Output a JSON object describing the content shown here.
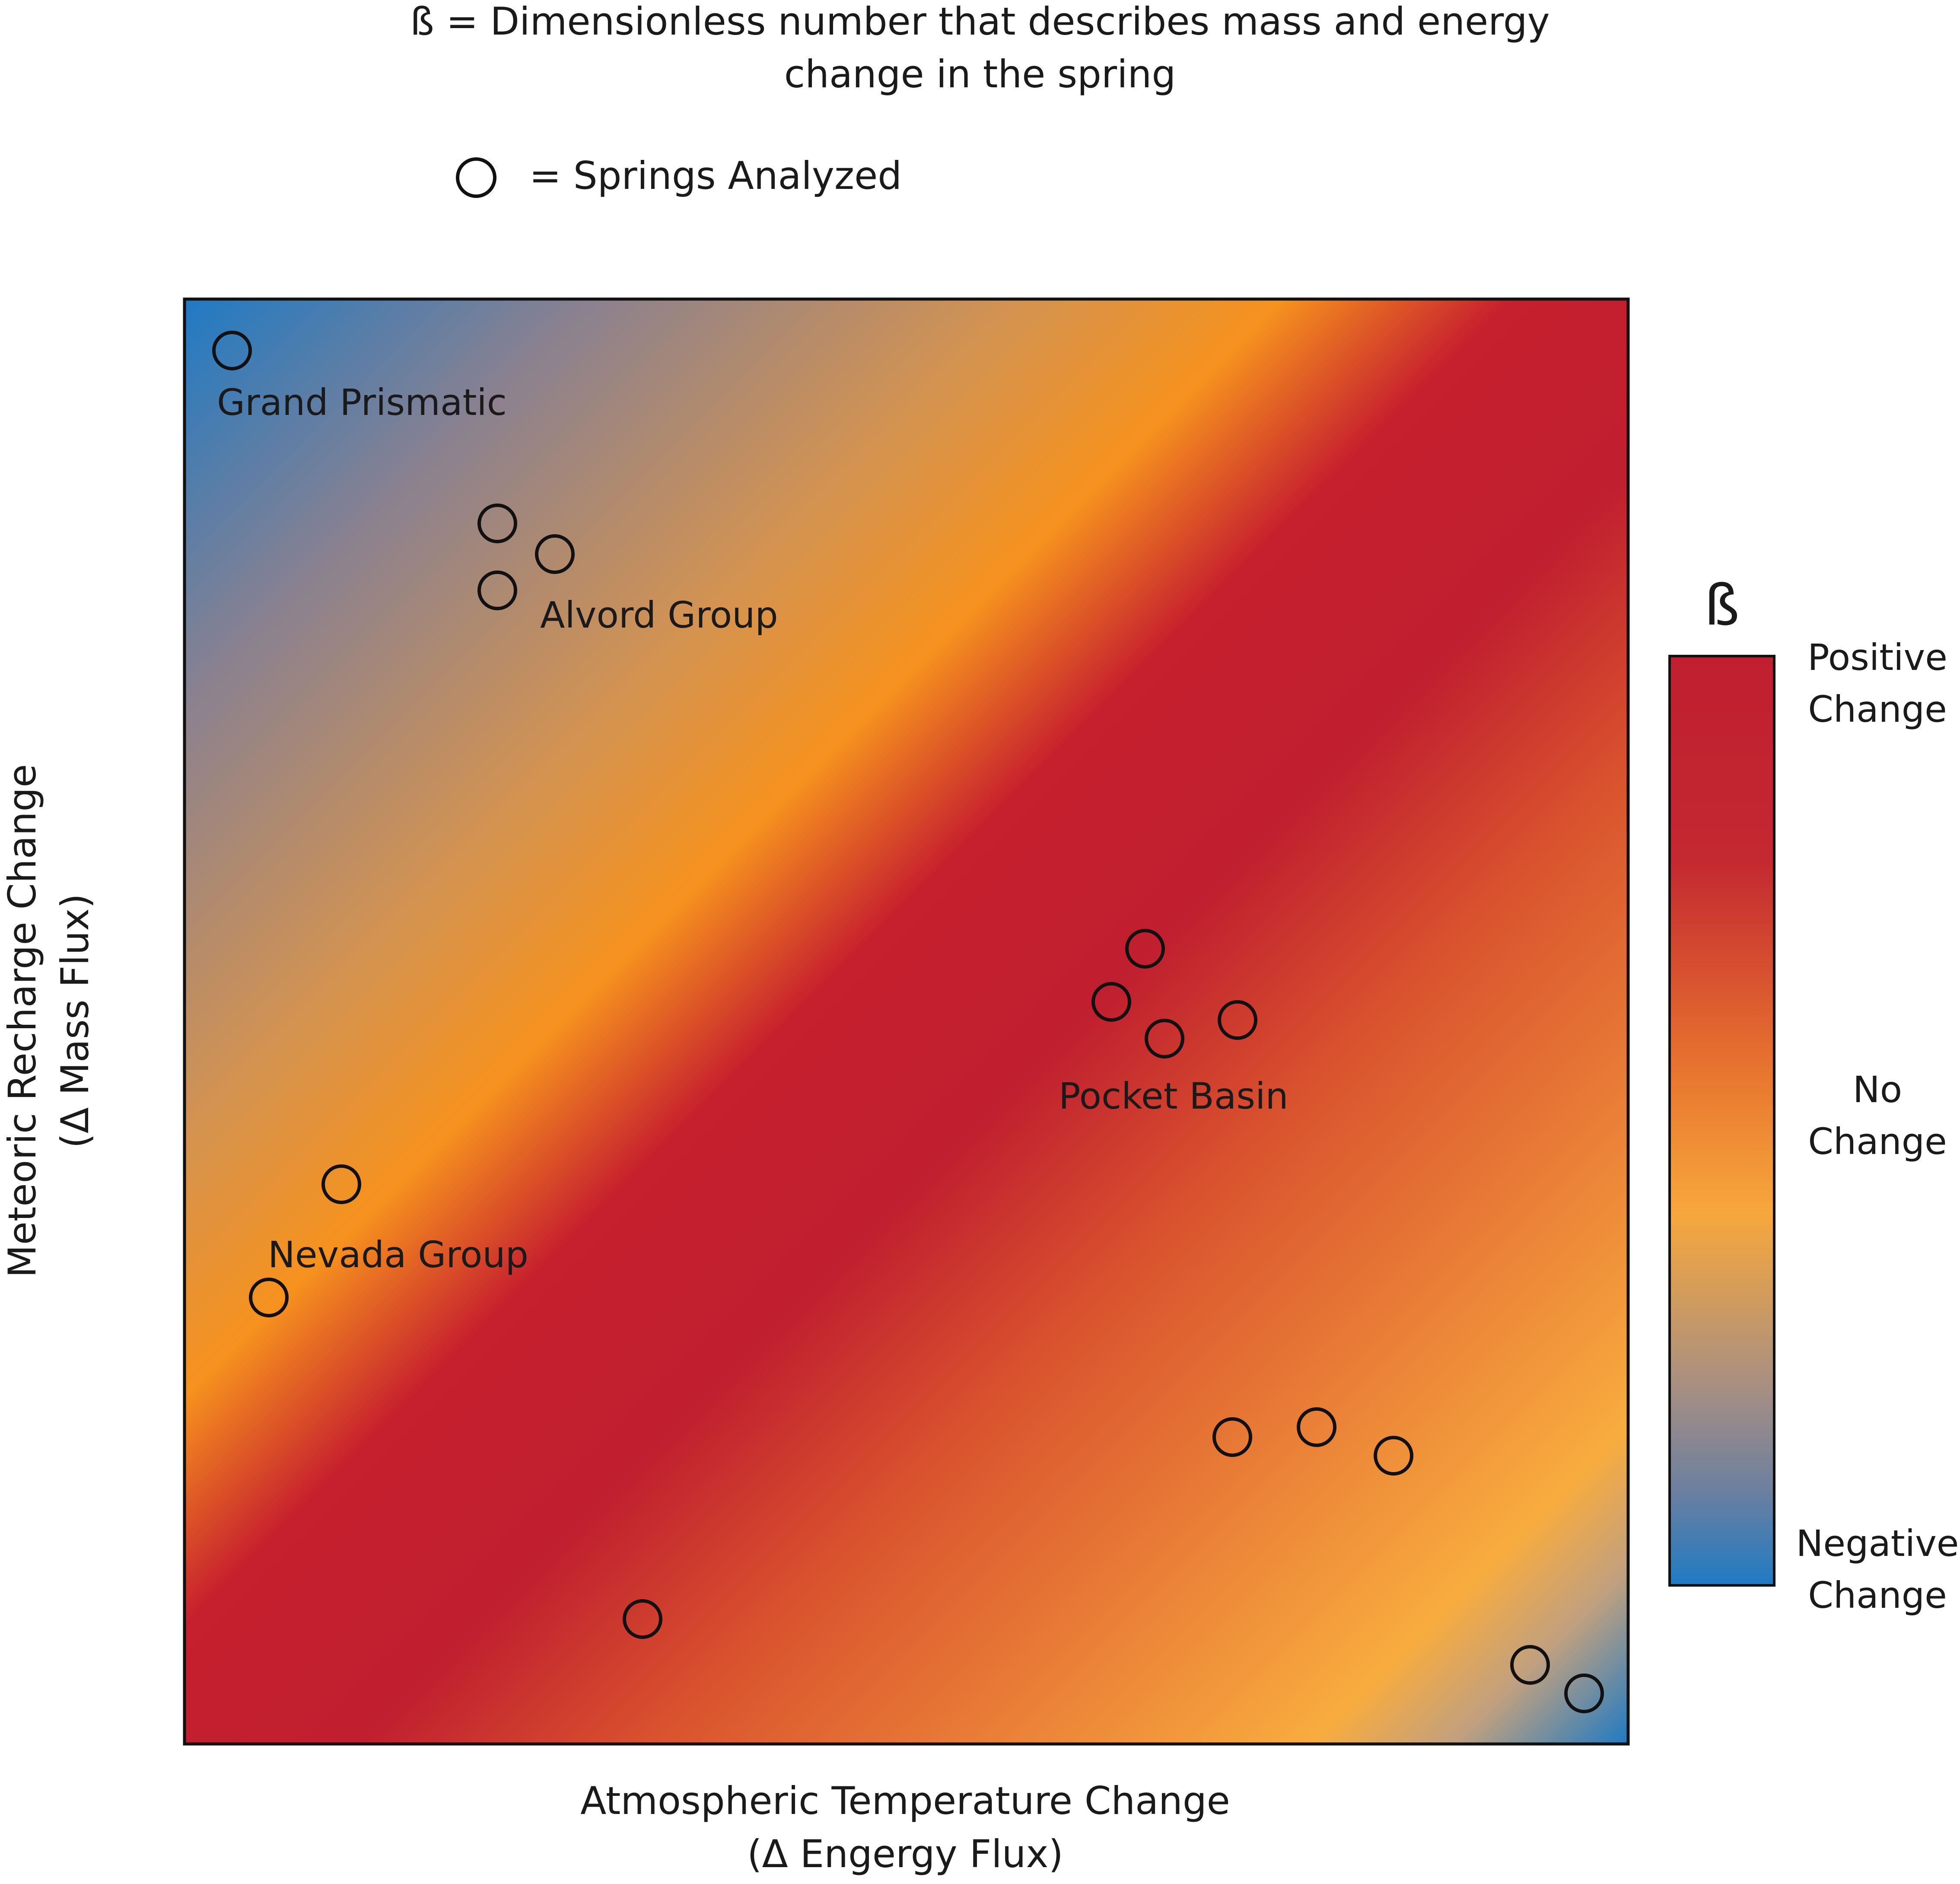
{
  "header": {
    "beta_line1": "ß = Dimensionless number that describes mass and energy",
    "beta_line2": "change in the spring",
    "springs_legend": "= Springs Analyzed"
  },
  "axes": {
    "x_line1": "Atmospheric Temperature Change",
    "x_line2": "(Δ Engergy Flux)",
    "y_line1": "Meteoric Recharge Change",
    "y_line2": "(Δ Mass Flux)"
  },
  "colorbar": {
    "title": "ß",
    "positive_1": "Positive",
    "positive_2": "Change",
    "none_1": "No",
    "none_2": "Change",
    "negative_1": "Negative",
    "negative_2": "Change"
  },
  "groups": {
    "grand_prismatic": "Grand Prismatic",
    "alvord": "Alvord Group",
    "pocket_basin": "Pocket Basin",
    "nevada": "Nevada Group"
  },
  "colors": {
    "negative": "#1f7ac4",
    "neutral_grey": "#8f8590",
    "no_change": "#f7a73c",
    "orange": "#f6921e",
    "positive": "#c01f2f"
  }
}
